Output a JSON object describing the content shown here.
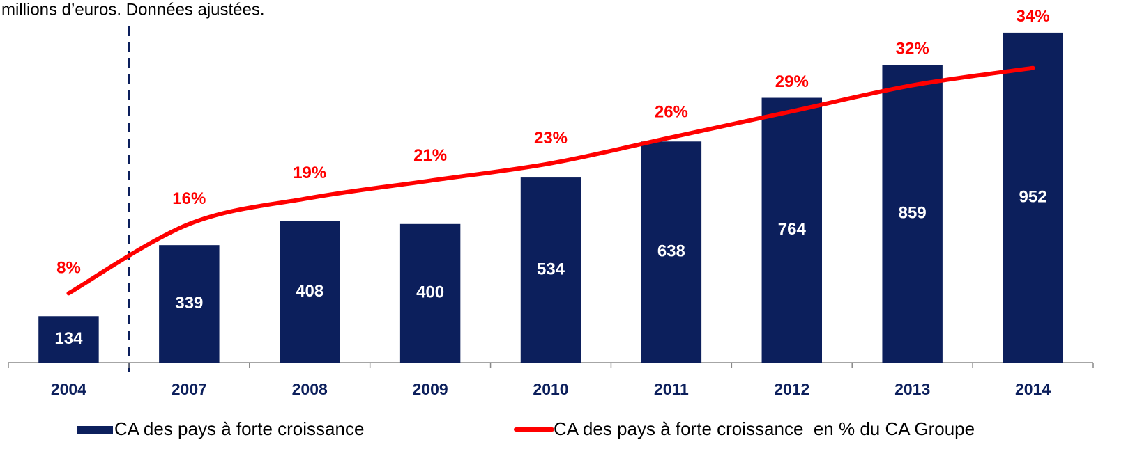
{
  "chart_data": {
    "type": "bar",
    "title": "millions d’euros. Données ajustées.",
    "categories": [
      "2004",
      "2007",
      "2008",
      "2009",
      "2010",
      "2011",
      "2012",
      "2013",
      "2014"
    ],
    "series": [
      {
        "name": "CA des pays à forte croissance",
        "color": "#0c1f5c",
        "type": "bar",
        "values": [
          134,
          339,
          408,
          400,
          534,
          638,
          764,
          859,
          952
        ]
      },
      {
        "name": "CA des pays à forte croissance  en % du CA Groupe",
        "color": "#ff0000",
        "type": "line",
        "axis": "y2",
        "values": [
          8,
          16,
          19,
          21,
          23,
          26,
          29,
          32,
          34
        ],
        "value_labels": [
          "8%",
          "16%",
          "19%",
          "21%",
          "23%",
          "26%",
          "29%",
          "32%",
          "34%"
        ]
      }
    ],
    "ylim": [
      0,
      1000
    ],
    "y2lim": [
      0,
      40
    ]
  }
}
